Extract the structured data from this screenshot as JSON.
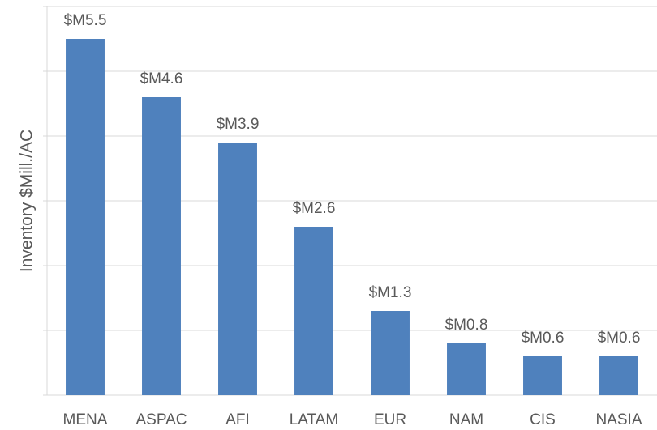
{
  "chart_data": {
    "type": "bar",
    "y_label": "Inventory $Mill./AC",
    "categories": [
      "MENA",
      "ASPAC",
      "AFI",
      "LATAM",
      "EUR",
      "NAM",
      "CIS",
      "NASIA"
    ],
    "values": [
      5.5,
      4.6,
      3.9,
      2.6,
      1.3,
      0.8,
      0.6,
      0.6
    ],
    "value_labels": [
      "$M5.5",
      "$M4.6",
      "$M3.9",
      "$M2.6",
      "$M1.3",
      "$M0.8",
      "$M0.6",
      "$M0.6"
    ],
    "color": "#4f81bd",
    "ylim": [
      0,
      6
    ],
    "yticks": [
      0,
      1,
      2,
      3,
      4,
      5,
      6
    ],
    "grid": true
  }
}
